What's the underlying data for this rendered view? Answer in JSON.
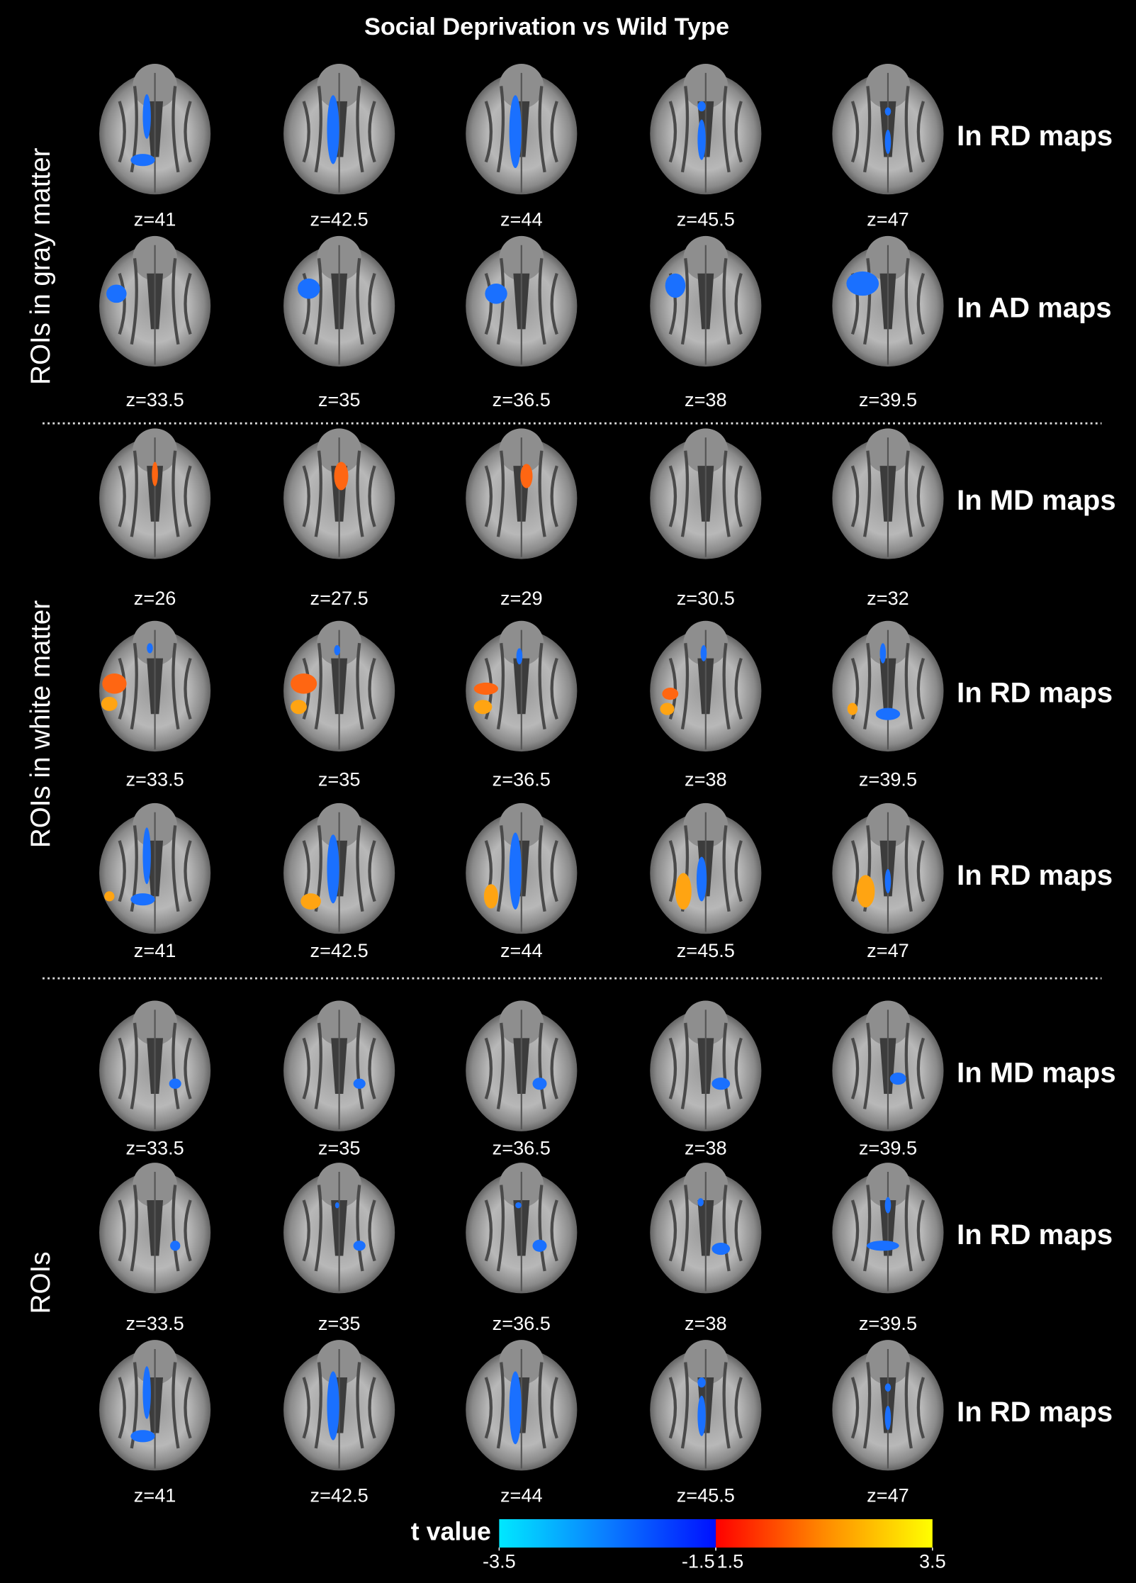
{
  "title": "Social Deprivation vs Wild Type",
  "sections": [
    {
      "label": "ROIs in gray matter",
      "rows": [
        {
          "map": "In RD maps",
          "slices": [
            "z=41",
            "z=42.5",
            "z=44",
            "z=45.5",
            "z=47"
          ]
        },
        {
          "map": "In AD maps",
          "slices": [
            "z=33.5",
            "z=35",
            "z=36.5",
            "z=38",
            "z=39.5"
          ]
        }
      ]
    },
    {
      "label": "ROIs in white matter",
      "rows": [
        {
          "map": "In MD maps",
          "slices": [
            "z=26",
            "z=27.5",
            "z=29",
            "z=30.5",
            "z=32"
          ]
        },
        {
          "map": "In RD maps",
          "slices": [
            "z=33.5",
            "z=35",
            "z=36.5",
            "z=38",
            "z=39.5"
          ]
        },
        {
          "map": "In RD maps",
          "slices": [
            "z=41",
            "z=42.5",
            "z=44",
            "z=45.5",
            "z=47"
          ]
        }
      ]
    },
    {
      "label": "ROIs",
      "rows": [
        {
          "map": "In MD maps",
          "slices": [
            "z=33.5",
            "z=35",
            "z=36.5",
            "z=38",
            "z=39.5"
          ]
        },
        {
          "map": "In RD maps",
          "slices": [
            "z=33.5",
            "z=35",
            "z=36.5",
            "z=38",
            "z=39.5"
          ]
        },
        {
          "map": "In RD maps",
          "slices": [
            "z=41",
            "z=42.5",
            "z=44",
            "z=45.5",
            "z=47"
          ]
        }
      ]
    }
  ],
  "colorbar": {
    "label": "t value",
    "ticks": [
      -3.5,
      -1.5,
      1.5,
      3.5
    ]
  }
}
